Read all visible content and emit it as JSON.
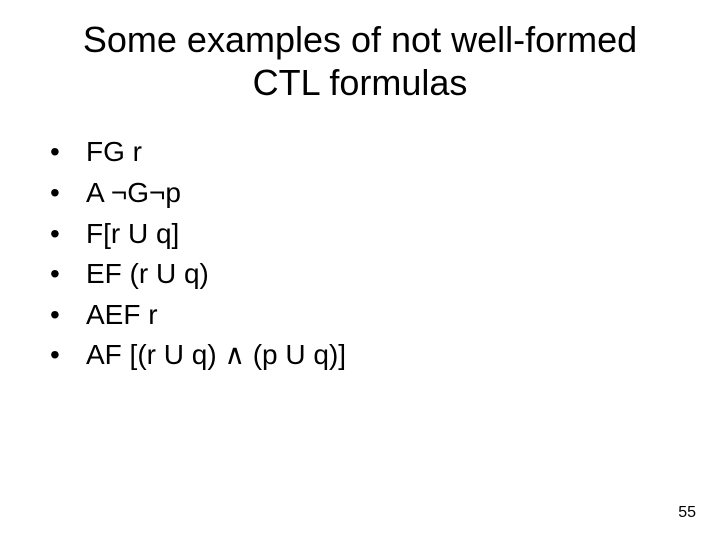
{
  "title_line1": "Some examples of not well-formed",
  "title_line2": "CTL formulas",
  "title_fontsize": 36,
  "body_fontsize": 28,
  "text_color": "#000000",
  "background_color": "#ffffff",
  "bullet_char": "•",
  "items": [
    "FG r",
    "A ¬G¬p",
    "F[r U q]",
    "EF (r U q)",
    "AEF r",
    "AF [(r U q) ∧ (p U q)]"
  ],
  "page_number": "55"
}
